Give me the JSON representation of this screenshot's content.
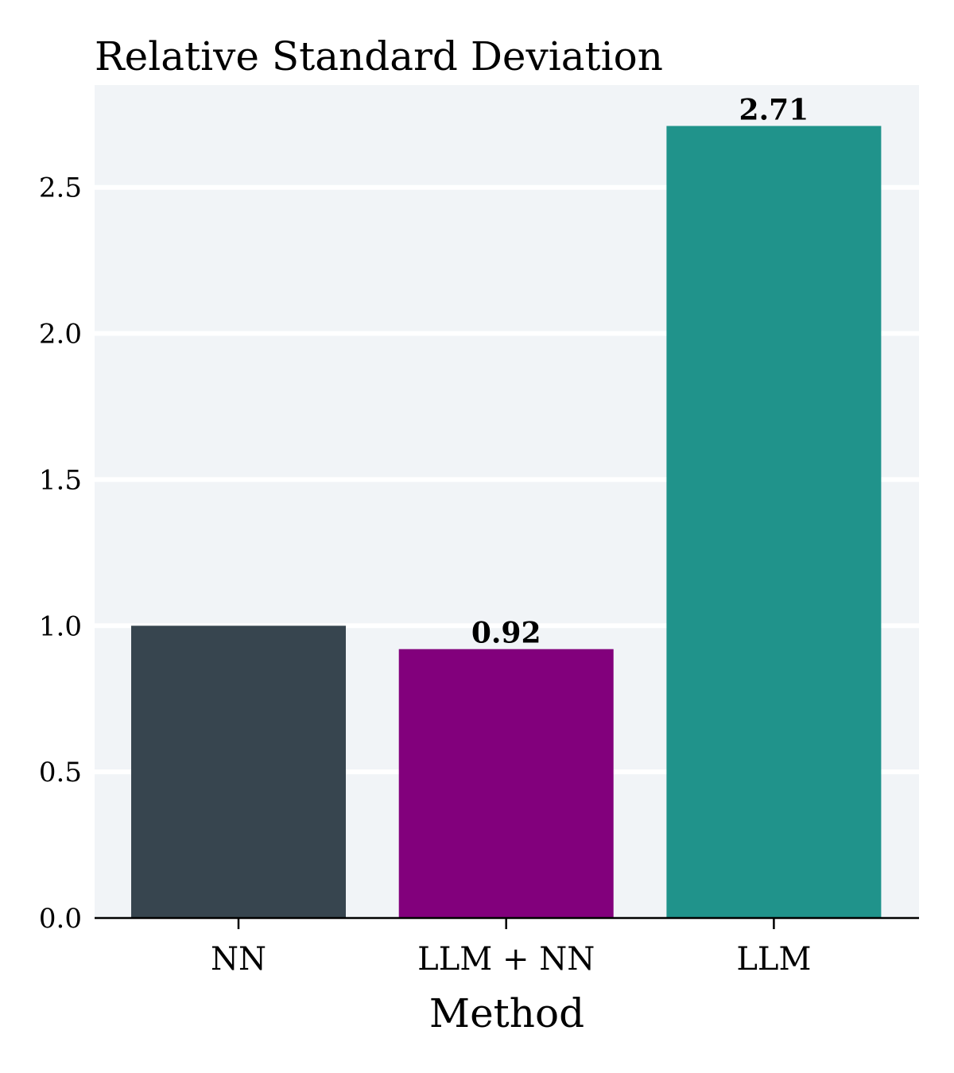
{
  "chart_data": {
    "type": "bar",
    "title": "Relative Standard Deviation",
    "xlabel": "Method",
    "ylabel": "",
    "categories": [
      "NN",
      "LLM + NN",
      "LLM"
    ],
    "values": [
      1.0,
      0.92,
      2.71
    ],
    "value_labels": [
      "",
      "0.92",
      "2.71"
    ],
    "colors": [
      "#37454f",
      "#82007c",
      "#20938b"
    ],
    "ylim": [
      0,
      2.85
    ],
    "yticks": [
      0.0,
      0.5,
      1.0,
      1.5,
      2.0,
      2.5
    ],
    "ytick_labels": [
      "0.0",
      "0.5",
      "1.0",
      "1.5",
      "2.0",
      "2.5"
    ],
    "grid": true,
    "grid_axis": "y",
    "background_color": "#f1f4f7",
    "grid_color": "#ffffff"
  }
}
